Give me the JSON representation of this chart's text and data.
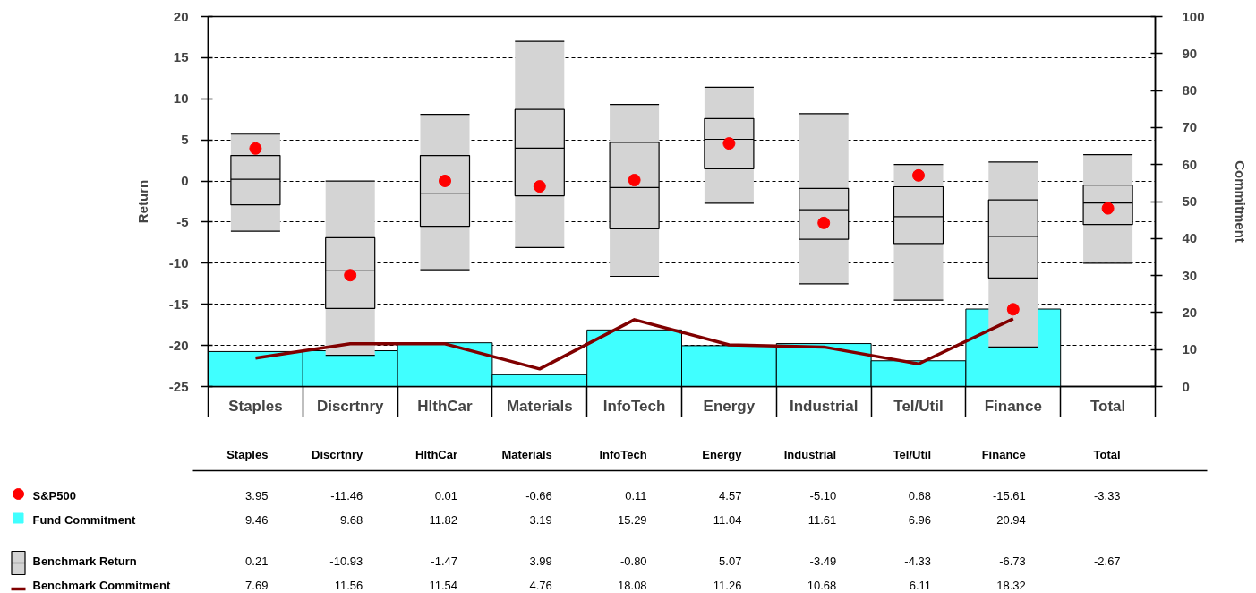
{
  "chart_data": {
    "type": "box",
    "categories": [
      "Staples",
      "Discrtnry",
      "HlthCar",
      "Materials",
      "InfoTech",
      "Energy",
      "Industrial",
      "Tel/Util",
      "Finance",
      "Total"
    ],
    "ylabel": "Return",
    "y2label": "Commitment",
    "ylim": [
      -25,
      20
    ],
    "yticks": [
      -25,
      -20,
      -15,
      -10,
      -5,
      0,
      5,
      10,
      15,
      20
    ],
    "y2lim": [
      0,
      100
    ],
    "y2ticks": [
      0,
      10,
      20,
      30,
      40,
      50,
      60,
      70,
      80,
      90,
      100
    ],
    "grid": "y",
    "legend": "bottom",
    "series": [
      {
        "name": "S&P500",
        "type": "scatter",
        "marker": "circle",
        "color": "#ff0000",
        "values": [
          3.95,
          -11.46,
          0.01,
          -0.66,
          0.11,
          4.57,
          -5.1,
          0.68,
          -15.61,
          -3.33
        ],
        "value_labels": [
          "3.95",
          "-11.46",
          "0.01",
          "-0.66",
          "0.11",
          "4.57",
          "-5.10",
          "0.68",
          "-15.61",
          "-3.33"
        ]
      },
      {
        "name": "Fund Commitment",
        "type": "bar",
        "axis": "y2",
        "color": "#40ffff",
        "values": [
          9.46,
          9.68,
          11.82,
          3.19,
          15.29,
          11.04,
          11.61,
          6.96,
          20.94,
          null
        ],
        "value_labels": [
          "9.46",
          "9.68",
          "11.82",
          "3.19",
          "15.29",
          "11.04",
          "11.61",
          "6.96",
          "20.94",
          null
        ]
      },
      {
        "name": "Benchmark Return",
        "color": "#d4d4d4",
        "boxes": [
          {
            "low": -6.1,
            "q1": -2.9,
            "median": 0.21,
            "q3": 3.1,
            "high": 5.7
          },
          {
            "low": -21.2,
            "q1": -15.5,
            "median": -10.93,
            "q3": -6.9,
            "high": 0.0
          },
          {
            "low": -10.8,
            "q1": -5.5,
            "median": -1.47,
            "q3": 3.1,
            "high": 8.1
          },
          {
            "low": -8.1,
            "q1": -1.8,
            "median": 3.99,
            "q3": 8.7,
            "high": 17.0
          },
          {
            "low": -11.6,
            "q1": -5.8,
            "median": -0.8,
            "q3": 4.7,
            "high": 9.3
          },
          {
            "low": -2.7,
            "q1": 1.5,
            "median": 5.07,
            "q3": 7.6,
            "high": 11.4
          },
          {
            "low": -12.5,
            "q1": -7.1,
            "median": -3.49,
            "q3": -0.9,
            "high": 8.2
          },
          {
            "low": -14.5,
            "q1": -7.6,
            "median": -4.33,
            "q3": -0.7,
            "high": 2.0
          },
          {
            "low": -20.2,
            "q1": -11.8,
            "median": -6.73,
            "q3": -2.3,
            "high": 2.3
          },
          {
            "low": -10.0,
            "q1": -5.3,
            "median": -2.67,
            "q3": -0.5,
            "high": 3.2
          }
        ],
        "value_labels": [
          "0.21",
          "-10.93",
          "-1.47",
          "3.99",
          "-0.80",
          "5.07",
          "-3.49",
          "-4.33",
          "-6.73",
          "-2.67"
        ]
      },
      {
        "name": "Benchmark Commitment",
        "type": "line",
        "axis": "y2",
        "color": "#800000",
        "values": [
          7.69,
          11.56,
          11.54,
          4.76,
          18.08,
          11.26,
          10.68,
          6.11,
          18.32,
          null
        ],
        "value_labels": [
          "7.69",
          "11.56",
          "11.54",
          "4.76",
          "18.08",
          "11.26",
          "10.68",
          "6.11",
          "18.32",
          null
        ]
      }
    ]
  }
}
